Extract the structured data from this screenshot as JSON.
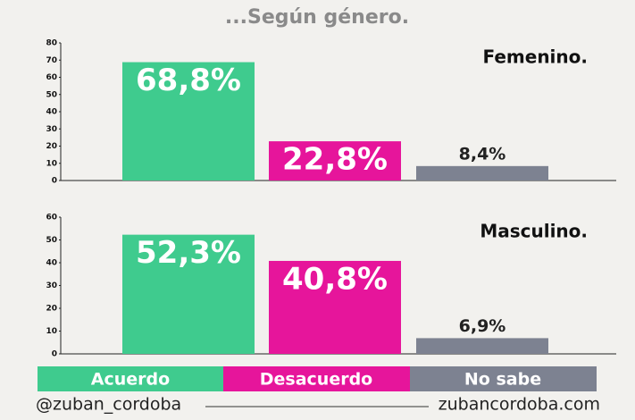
{
  "title": "...Según género.",
  "colors": [
    "#3fcb8e",
    "#e6159b",
    "#7d8291"
  ],
  "legend": [
    "Acuerdo",
    "Desacuerdo",
    "No sabe"
  ],
  "footer": {
    "left": "@zuban_cordoba",
    "right": "zubancordoba.com"
  },
  "chart_data": [
    {
      "type": "bar",
      "title": "Femenino.",
      "values": [
        68.8,
        22.8,
        8.4
      ],
      "value_labels": [
        "68,8%",
        "22,8%",
        "8,4%"
      ],
      "ylim": [
        0,
        80
      ],
      "yticks": [
        0,
        10,
        20,
        30,
        40,
        50,
        60,
        70,
        80
      ]
    },
    {
      "type": "bar",
      "title": "Masculino.",
      "values": [
        52.3,
        40.8,
        6.9
      ],
      "value_labels": [
        "52,3%",
        "40,8%",
        "6,9%"
      ],
      "ylim": [
        0,
        60
      ],
      "yticks": [
        0,
        10,
        20,
        30,
        40,
        50,
        60
      ]
    }
  ]
}
